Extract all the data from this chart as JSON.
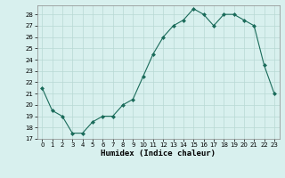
{
  "x": [
    0,
    1,
    2,
    3,
    4,
    5,
    6,
    7,
    8,
    9,
    10,
    11,
    12,
    13,
    14,
    15,
    16,
    17,
    18,
    19,
    20,
    21,
    22,
    23
  ],
  "y": [
    21.5,
    19.5,
    19.0,
    17.5,
    17.5,
    18.5,
    19.0,
    19.0,
    20.0,
    20.5,
    22.5,
    24.5,
    26.0,
    27.0,
    27.5,
    28.5,
    28.0,
    27.0,
    28.0,
    28.0,
    27.5,
    27.0,
    23.5,
    21.0
  ],
  "line_color": "#1a6b5a",
  "marker": "D",
  "marker_size": 2,
  "bg_color": "#d8f0ee",
  "grid_color": "#b8d8d4",
  "xlabel": "Humidex (Indice chaleur)",
  "xlim": [
    -0.5,
    23.5
  ],
  "ylim": [
    17,
    28.8
  ],
  "yticks": [
    17,
    18,
    19,
    20,
    21,
    22,
    23,
    24,
    25,
    26,
    27,
    28
  ],
  "xticks": [
    0,
    1,
    2,
    3,
    4,
    5,
    6,
    7,
    8,
    9,
    10,
    11,
    12,
    13,
    14,
    15,
    16,
    17,
    18,
    19,
    20,
    21,
    22,
    23
  ],
  "tick_fontsize": 5,
  "xlabel_fontsize": 6.5
}
